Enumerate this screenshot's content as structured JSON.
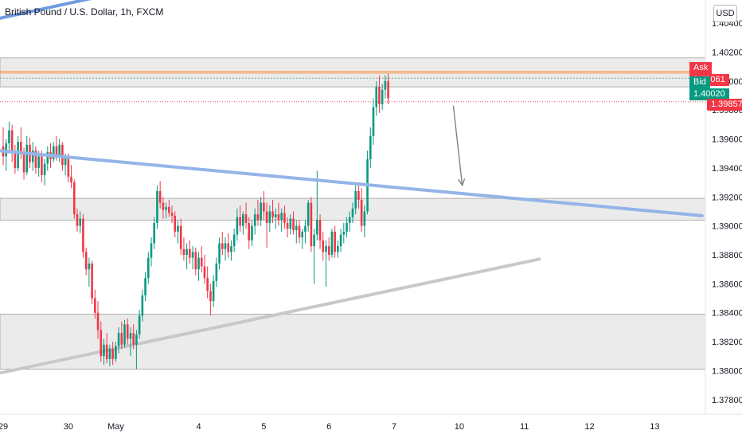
{
  "header": {
    "symbol_title": "British Pound / U.S. Dollar, 1h, FXCM",
    "currency": "USD"
  },
  "quote": {
    "ask_label": "Ask",
    "ask_value": "1.40061",
    "bid_label": "Bid",
    "bid_value": "1.40020",
    "last_value": "1.39857"
  },
  "colors": {
    "up": "#089981",
    "down": "#f23645",
    "trendline_blue": "#94b4e8",
    "trendline_grey": "#c8c8cc",
    "zone": "#ebebeb"
  },
  "chart_data": {
    "type": "candlestick",
    "y_ticks": [
      "1.40400",
      "1.40200",
      "1.40000",
      "1.39800",
      "1.39600",
      "1.39400",
      "1.39200",
      "1.39000",
      "1.38800",
      "1.38600",
      "1.38400",
      "1.38200",
      "1.38000",
      "1.37800"
    ],
    "ylim": [
      1.377,
      1.4056
    ],
    "x_ticks": [
      {
        "label": "29",
        "i": 0
      },
      {
        "label": "30",
        "i": 22
      },
      {
        "label": "May",
        "i": 38
      },
      {
        "label": "4",
        "i": 66
      },
      {
        "label": "5",
        "i": 88
      },
      {
        "label": "6",
        "i": 110
      },
      {
        "label": "7",
        "i": 132
      },
      {
        "label": "10",
        "i": 154
      },
      {
        "label": "11",
        "i": 176
      },
      {
        "label": "12",
        "i": 198
      },
      {
        "label": "13",
        "i": 220
      }
    ],
    "bar_count_span": 236,
    "zones": [
      {
        "from": 1.3996,
        "to": 1.4016
      },
      {
        "from": 1.3904,
        "to": 1.3919
      },
      {
        "from": 1.3801,
        "to": 1.3839
      }
    ],
    "levels": {
      "ask": 1.40061,
      "bid": 1.4002,
      "last": 1.39857
    },
    "trendlines": [
      {
        "name": "resistance",
        "from": {
          "i": -2,
          "p": 1.3952
        },
        "to": {
          "i": 236,
          "p": 1.3907
        }
      },
      {
        "name": "support",
        "from": {
          "i": -2,
          "p": 1.3798
        },
        "to": {
          "i": 181,
          "p": 1.3877
        }
      },
      {
        "name": "prior",
        "from": {
          "i": -2,
          "p": 1.4043
        },
        "to": {
          "i": 34,
          "p": 1.4059
        }
      }
    ],
    "arrow": {
      "from": {
        "i": 152,
        "p": 1.3983
      },
      "to": {
        "i": 155,
        "p": 1.3928
      }
    },
    "candles": [
      [
        1.3955,
        1.3968,
        1.3942,
        1.3948
      ],
      [
        1.3948,
        1.396,
        1.3938,
        1.3957
      ],
      [
        1.3957,
        1.3972,
        1.395,
        1.3966
      ],
      [
        1.3966,
        1.397,
        1.3944,
        1.395
      ],
      [
        1.395,
        1.3956,
        1.3936,
        1.394
      ],
      [
        1.394,
        1.3962,
        1.3938,
        1.3958
      ],
      [
        1.3958,
        1.3968,
        1.3946,
        1.395
      ],
      [
        1.395,
        1.3954,
        1.3932,
        1.3937
      ],
      [
        1.3937,
        1.3962,
        1.3935,
        1.3956
      ],
      [
        1.3956,
        1.3961,
        1.394,
        1.3944
      ],
      [
        1.3944,
        1.3958,
        1.3938,
        1.3952
      ],
      [
        1.3952,
        1.3955,
        1.3936,
        1.394
      ],
      [
        1.394,
        1.3952,
        1.3934,
        1.3948
      ],
      [
        1.3948,
        1.3952,
        1.393,
        1.3935
      ],
      [
        1.3935,
        1.3946,
        1.3928,
        1.3943
      ],
      [
        1.3943,
        1.3955,
        1.3938,
        1.3951
      ],
      [
        1.3951,
        1.3957,
        1.394,
        1.3946
      ],
      [
        1.3946,
        1.3958,
        1.3944,
        1.3955
      ],
      [
        1.3955,
        1.3962,
        1.3945,
        1.3948
      ],
      [
        1.3948,
        1.396,
        1.3944,
        1.3956
      ],
      [
        1.3956,
        1.3958,
        1.3938,
        1.3942
      ],
      [
        1.3942,
        1.395,
        1.3935,
        1.3947
      ],
      [
        1.3947,
        1.395,
        1.393,
        1.3934
      ],
      [
        1.3934,
        1.3942,
        1.3926,
        1.393
      ],
      [
        1.393,
        1.3932,
        1.3905,
        1.3908
      ],
      [
        1.3908,
        1.3912,
        1.3896,
        1.39
      ],
      [
        1.39,
        1.391,
        1.3895,
        1.3905
      ],
      [
        1.3905,
        1.3908,
        1.3878,
        1.3882
      ],
      [
        1.3882,
        1.3885,
        1.3866,
        1.387
      ],
      [
        1.387,
        1.3878,
        1.3858,
        1.3874
      ],
      [
        1.3874,
        1.3876,
        1.3846,
        1.385
      ],
      [
        1.385,
        1.3856,
        1.3836,
        1.384
      ],
      [
        1.384,
        1.3848,
        1.3822,
        1.3828
      ],
      [
        1.3828,
        1.3834,
        1.3806,
        1.381
      ],
      [
        1.381,
        1.3822,
        1.3804,
        1.3818
      ],
      [
        1.3818,
        1.3826,
        1.3805,
        1.3808
      ],
      [
        1.3808,
        1.3818,
        1.3803,
        1.3815
      ],
      [
        1.3815,
        1.382,
        1.3804,
        1.3808
      ],
      [
        1.3808,
        1.382,
        1.3806,
        1.3817
      ],
      [
        1.3817,
        1.383,
        1.3812,
        1.3826
      ],
      [
        1.3826,
        1.3834,
        1.3815,
        1.3818
      ],
      [
        1.3818,
        1.3835,
        1.3816,
        1.3832
      ],
      [
        1.3832,
        1.3836,
        1.3818,
        1.3822
      ],
      [
        1.3822,
        1.383,
        1.381,
        1.3826
      ],
      [
        1.3826,
        1.3832,
        1.3815,
        1.3818
      ],
      [
        1.3818,
        1.3828,
        1.3801,
        1.3825
      ],
      [
        1.3825,
        1.3842,
        1.3822,
        1.3838
      ],
      [
        1.3838,
        1.3856,
        1.3834,
        1.3852
      ],
      [
        1.3852,
        1.3868,
        1.3848,
        1.3864
      ],
      [
        1.3864,
        1.3882,
        1.386,
        1.3878
      ],
      [
        1.3878,
        1.3892,
        1.3872,
        1.3888
      ],
      [
        1.3888,
        1.3906,
        1.3884,
        1.3902
      ],
      [
        1.3902,
        1.3928,
        1.3898,
        1.3924
      ],
      [
        1.3924,
        1.3931,
        1.3912,
        1.3916
      ],
      [
        1.3916,
        1.392,
        1.3905,
        1.3911
      ],
      [
        1.3911,
        1.3916,
        1.3905,
        1.3913
      ],
      [
        1.3913,
        1.3918,
        1.3906,
        1.3909
      ],
      [
        1.3909,
        1.3914,
        1.3902,
        1.3907
      ],
      [
        1.3907,
        1.391,
        1.3892,
        1.3896
      ],
      [
        1.3896,
        1.3904,
        1.3888,
        1.39
      ],
      [
        1.39,
        1.3905,
        1.388,
        1.3884
      ],
      [
        1.3884,
        1.3892,
        1.3876,
        1.388
      ],
      [
        1.388,
        1.3888,
        1.387,
        1.3884
      ],
      [
        1.3884,
        1.389,
        1.3874,
        1.3878
      ],
      [
        1.3878,
        1.3886,
        1.387,
        1.3882
      ],
      [
        1.3882,
        1.3885,
        1.3866,
        1.387
      ],
      [
        1.387,
        1.3882,
        1.3862,
        1.3878
      ],
      [
        1.3878,
        1.3886,
        1.3868,
        1.3872
      ],
      [
        1.3872,
        1.388,
        1.386,
        1.3864
      ],
      [
        1.3864,
        1.3872,
        1.385,
        1.3855
      ],
      [
        1.3855,
        1.386,
        1.3838,
        1.3848
      ],
      [
        1.3848,
        1.3866,
        1.3844,
        1.3862
      ],
      [
        1.3862,
        1.3878,
        1.3858,
        1.3874
      ],
      [
        1.3874,
        1.3892,
        1.387,
        1.3888
      ],
      [
        1.3888,
        1.3896,
        1.388,
        1.3884
      ],
      [
        1.3884,
        1.3892,
        1.3876,
        1.3888
      ],
      [
        1.3888,
        1.3895,
        1.3878,
        1.3882
      ],
      [
        1.3882,
        1.389,
        1.3876,
        1.3886
      ],
      [
        1.3886,
        1.3898,
        1.3882,
        1.3894
      ],
      [
        1.3894,
        1.3912,
        1.389,
        1.3906
      ],
      [
        1.3906,
        1.3914,
        1.3896,
        1.39
      ],
      [
        1.39,
        1.391,
        1.3894,
        1.3908
      ],
      [
        1.3908,
        1.3916,
        1.3898,
        1.3902
      ],
      [
        1.3902,
        1.3906,
        1.3884,
        1.389
      ],
      [
        1.389,
        1.3904,
        1.3886,
        1.39
      ],
      [
        1.39,
        1.3912,
        1.3894,
        1.3908
      ],
      [
        1.3908,
        1.3918,
        1.39,
        1.3904
      ],
      [
        1.3904,
        1.392,
        1.39,
        1.3916
      ],
      [
        1.3916,
        1.3924,
        1.3904,
        1.391
      ],
      [
        1.391,
        1.3916,
        1.3885,
        1.3902
      ],
      [
        1.3902,
        1.3914,
        1.3896,
        1.391
      ],
      [
        1.391,
        1.3918,
        1.3902,
        1.3906
      ],
      [
        1.3906,
        1.3912,
        1.3898,
        1.3908
      ],
      [
        1.3908,
        1.3916,
        1.39,
        1.3904
      ],
      [
        1.3904,
        1.3912,
        1.3896,
        1.3909
      ],
      [
        1.3909,
        1.3914,
        1.3898,
        1.3902
      ],
      [
        1.3902,
        1.3906,
        1.3892,
        1.3898
      ],
      [
        1.3898,
        1.3908,
        1.3894,
        1.3905
      ],
      [
        1.3905,
        1.391,
        1.3894,
        1.3897
      ],
      [
        1.3897,
        1.3904,
        1.3888,
        1.39
      ],
      [
        1.39,
        1.3904,
        1.3888,
        1.3892
      ],
      [
        1.3892,
        1.3898,
        1.3884,
        1.3896
      ],
      [
        1.3896,
        1.3904,
        1.3888,
        1.39
      ],
      [
        1.39,
        1.3918,
        1.3896,
        1.3916
      ],
      [
        1.3916,
        1.392,
        1.3882,
        1.3886
      ],
      [
        1.3886,
        1.3898,
        1.386,
        1.3894
      ],
      [
        1.3894,
        1.3938,
        1.389,
        1.3904
      ],
      [
        1.3904,
        1.3908,
        1.3884,
        1.389
      ],
      [
        1.389,
        1.3896,
        1.3876,
        1.3882
      ],
      [
        1.3882,
        1.389,
        1.3858,
        1.3886
      ],
      [
        1.3886,
        1.3892,
        1.3876,
        1.388
      ],
      [
        1.388,
        1.3898,
        1.3878,
        1.3896
      ],
      [
        1.3896,
        1.39,
        1.3878,
        1.3882
      ],
      [
        1.3882,
        1.389,
        1.3878,
        1.3886
      ],
      [
        1.3886,
        1.3898,
        1.3882,
        1.3894
      ],
      [
        1.3894,
        1.3902,
        1.3888,
        1.3896
      ],
      [
        1.3896,
        1.3906,
        1.3892,
        1.3902
      ],
      [
        1.3902,
        1.391,
        1.3896,
        1.3906
      ],
      [
        1.3906,
        1.3916,
        1.3902,
        1.3912
      ],
      [
        1.3912,
        1.3928,
        1.3908,
        1.3924
      ],
      [
        1.3924,
        1.393,
        1.3912,
        1.3918
      ],
      [
        1.3918,
        1.3926,
        1.3896,
        1.39
      ],
      [
        1.39,
        1.3914,
        1.3892,
        1.391
      ],
      [
        1.391,
        1.3952,
        1.3908,
        1.3946
      ],
      [
        1.3946,
        1.3968,
        1.394,
        1.3962
      ],
      [
        1.3962,
        1.3988,
        1.3956,
        1.3982
      ],
      [
        1.3982,
        1.4,
        1.3976,
        1.3996
      ],
      [
        1.3996,
        1.4004,
        1.3978,
        1.3984
      ],
      [
        1.3984,
        1.3998,
        1.398,
        1.3994
      ],
      [
        1.3994,
        1.4004,
        1.3988,
        1.4
      ],
      [
        1.4,
        1.4005,
        1.3984,
        1.3988
      ]
    ]
  }
}
